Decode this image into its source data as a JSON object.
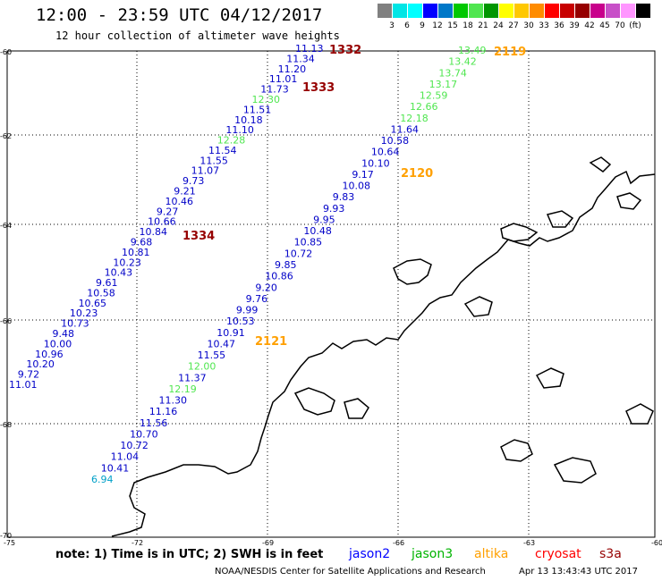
{
  "title": "12:00 - 23:59 UTC 04/12/2017",
  "subtitle": "12 hour collection of altimeter wave heights",
  "scale": {
    "colors": [
      "#808080",
      "#00e5e5",
      "#00ffff",
      "#0000ff",
      "#0078c8",
      "#00c800",
      "#50e650",
      "#009600",
      "#ffff00",
      "#ffc800",
      "#ff8c00",
      "#ff0000",
      "#c80000",
      "#960000",
      "#c8008c",
      "#c850c8",
      "#ff96ff",
      "#000000"
    ],
    "labels": [
      "3",
      "6",
      "9",
      "12",
      "15",
      "18",
      "21",
      "24",
      "27",
      "30",
      "33",
      "36",
      "39",
      "42",
      "45",
      "70",
      "(ft)"
    ]
  },
  "axes": {
    "lat_labels": [
      "-60",
      "-62",
      "-64",
      "-66",
      "-68",
      "-70"
    ],
    "lon_labels": [
      "-75",
      "-72",
      "-69",
      "-66",
      "-63",
      "-60"
    ]
  },
  "passes": [
    "1332",
    "1333",
    "1334",
    "2119",
    "2120",
    "2121"
  ],
  "track1": [
    "11.13",
    "11.34",
    "11.20",
    "11.01",
    "11.73",
    "12.30",
    "11.51",
    "10.18",
    "11.10",
    "12.28",
    "11.54",
    "11.55",
    "11.07",
    "9.73",
    "9.21",
    "10.46",
    "9.27",
    "10.66",
    "10.84",
    "9.68",
    "10.81",
    "10.23",
    "10.43",
    "9.61",
    "10.58",
    "10.65",
    "10.23",
    "10.73",
    "9.48",
    "10.00",
    "10.96",
    "10.20",
    "9.72",
    "11.01"
  ],
  "track2": [
    "13.49",
    "13.42",
    "13.74",
    "13.17",
    "12.59",
    "12.66",
    "12.18",
    "11.64",
    "10.58",
    "10.64",
    "10.10",
    "9.17",
    "10.08",
    "9.83",
    "9.93",
    "9.95",
    "10.48",
    "10.85",
    "10.72",
    "9.85",
    "10.86",
    "9.20",
    "9.76",
    "9.99",
    "10.53",
    "10.91",
    "10.47",
    "11.55",
    "12.00",
    "11.37",
    "12.19",
    "11.30",
    "11.16",
    "11.56",
    "10.70",
    "10.72",
    "11.04",
    "10.41",
    "6.94"
  ],
  "legend": {
    "jason2": "jason2",
    "jason3": "jason3",
    "altika": "altika",
    "cryosat": "cryosat",
    "s3a": "s3a",
    "colors": {
      "jason2": "#0000ff",
      "jason3": "#00b400",
      "altika": "#ffa000",
      "cryosat": "#ff0000",
      "s3a": "#960000"
    }
  },
  "note": "note: 1) Time is in UTC; 2) SWH is in feet",
  "footer": {
    "org": "NOAA/NESDIS Center for Satellite Applications and Research",
    "timestamp": "Apr 13 13:43:43 UTC 2017"
  }
}
